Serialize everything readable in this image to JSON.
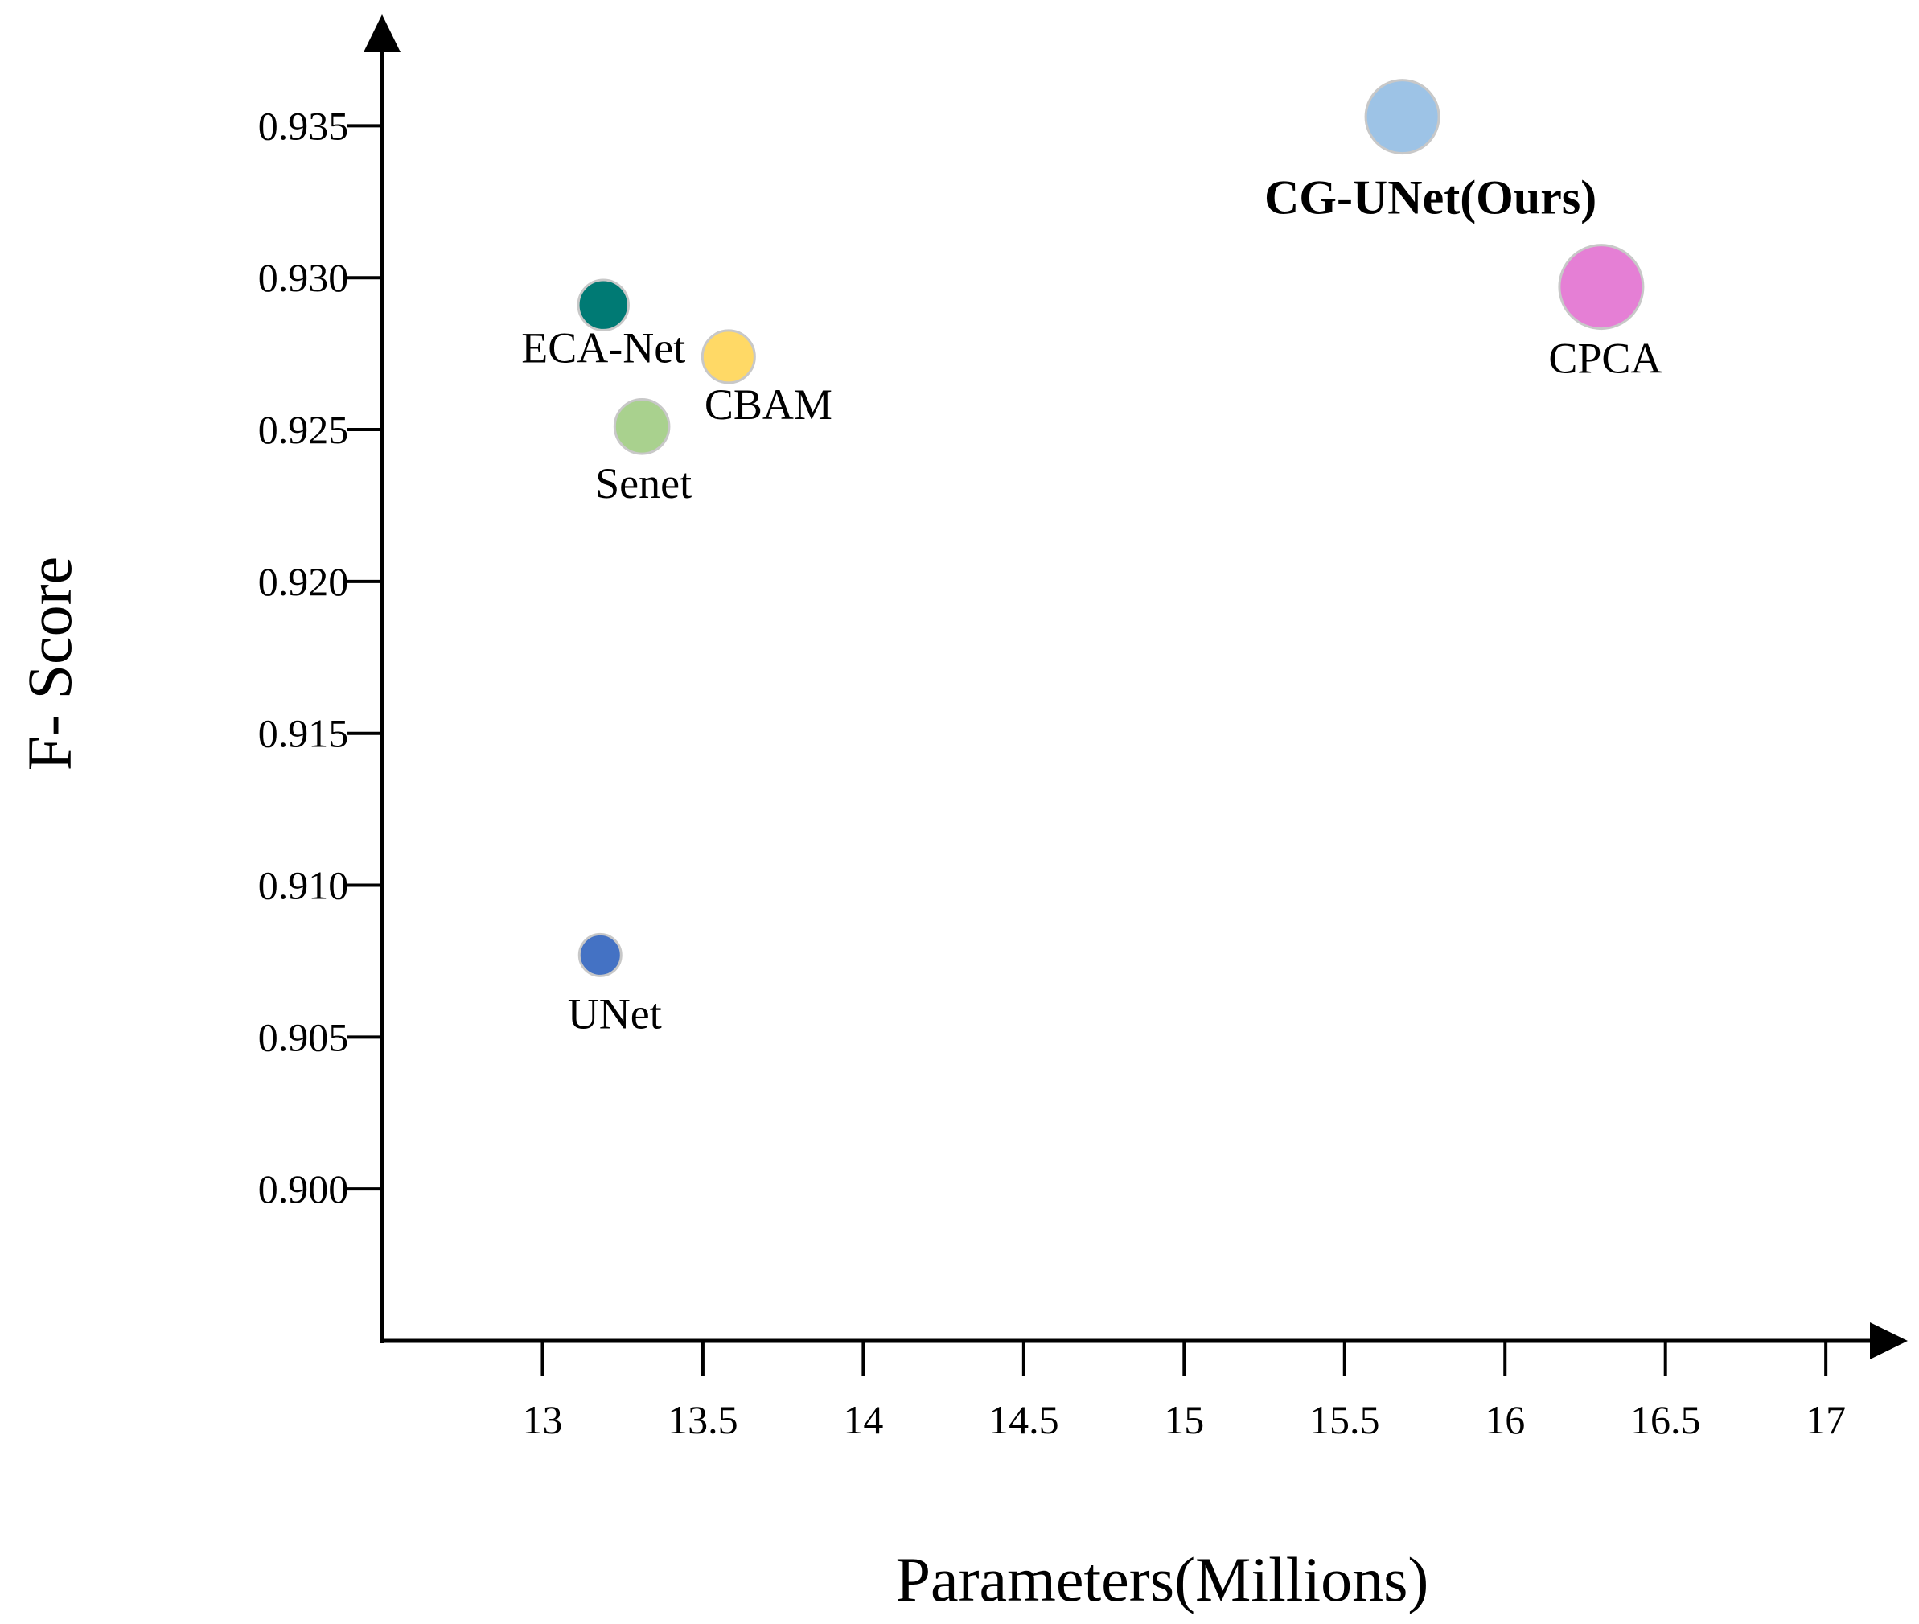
{
  "chart_data": {
    "type": "scatter",
    "title": "",
    "xlabel": "Parameters(Millions)",
    "ylabel": "F- Score",
    "xlim": [
      12.5,
      17.15
    ],
    "ylim": [
      0.895,
      0.9375
    ],
    "x_ticks": [
      13,
      13.5,
      14,
      14.5,
      15,
      15.5,
      16,
      16.5,
      17
    ],
    "x_tick_labels": [
      "13",
      "13.5",
      "14",
      "14.5",
      "15",
      "15.5",
      "16",
      "16.5",
      "17"
    ],
    "y_ticks": [
      0.9,
      0.905,
      0.91,
      0.915,
      0.92,
      0.925,
      0.93,
      0.935
    ],
    "y_tick_labels": [
      "0.900",
      "0.905",
      "0.910",
      "0.915",
      "0.920",
      "0.925",
      "0.930",
      "0.935"
    ],
    "grid": false,
    "points": [
      {
        "name": "UNet",
        "label": "UNet",
        "x": 13.18,
        "y": 0.9077,
        "color": "#4472C4",
        "size": 1,
        "label_pos": "below",
        "bold": false
      },
      {
        "name": "ECA-Net",
        "label": "ECA-Net",
        "x": 13.19,
        "y": 0.9291,
        "color": "#007A74",
        "size": 1.2,
        "label_pos": "below",
        "bold": false
      },
      {
        "name": "CBAM",
        "label": "CBAM",
        "x": 13.58,
        "y": 0.9274,
        "color": "#FFD966",
        "size": 1.25,
        "label_pos": "below-right",
        "bold": false
      },
      {
        "name": "Senet",
        "label": "Senet",
        "x": 13.31,
        "y": 0.9251,
        "color": "#A9D18E",
        "size": 1.3,
        "label_pos": "below",
        "bold": false
      },
      {
        "name": "CG-UNet(Ours)",
        "label": "CG-UNet(Ours)",
        "x": 15.68,
        "y": 0.9353,
        "color": "#9DC3E6",
        "size": 1.75,
        "label_pos": "below",
        "bold": true
      },
      {
        "name": "CPCA",
        "label": "CPCA",
        "x": 16.3,
        "y": 0.9297,
        "color": "#E57FD5",
        "size": 2.0,
        "label_pos": "below",
        "bold": false
      }
    ]
  }
}
